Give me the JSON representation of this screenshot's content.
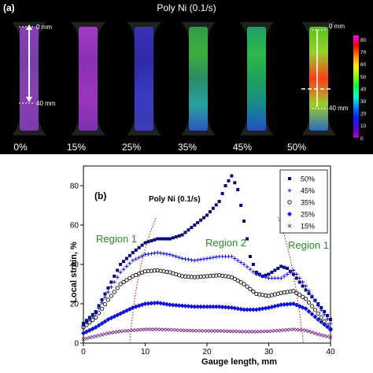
{
  "panel_a": {
    "label": "(a)",
    "title": "Poly Ni (0.1/s)",
    "specimens": [
      {
        "label": "0%",
        "colors": [
          "#8a3fb8",
          "#7a3ea8",
          "#8a40b0",
          "#7c3bad"
        ]
      },
      {
        "label": "15%",
        "colors": [
          "#a23bc4",
          "#8a2fb5",
          "#9a36c0",
          "#7f2fb0"
        ]
      },
      {
        "label": "25%",
        "colors": [
          "#3a32b8",
          "#2f2aa8",
          "#3a3ac0",
          "#3b3bb5"
        ]
      },
      {
        "label": "35%",
        "colors": [
          "#2f9a4a",
          "#3fae3f",
          "#2a8a66",
          "#2aa0a0",
          "#2a55c0"
        ]
      },
      {
        "label": "45%",
        "colors": [
          "#1aa06a",
          "#2fb84a",
          "#22a05a",
          "#1a8a8a",
          "#2050c8"
        ]
      },
      {
        "label": "50%",
        "colors": [
          "#5ac01a",
          "#98d02a",
          "#ff3a1a",
          "#9ad02a",
          "#2a6ac0"
        ]
      }
    ],
    "length_markers": {
      "top": "0 mm",
      "bottom": "40 mm"
    },
    "colorbar": {
      "ticks": [
        "80",
        "70",
        "60",
        "50",
        "40",
        "30",
        "20",
        "10",
        "0"
      ],
      "colors": [
        "#ff00ff",
        "#ff0000",
        "#ff8800",
        "#ffee00",
        "#88ff00",
        "#00ff44",
        "#00ffcc",
        "#0088ff",
        "#0022ff",
        "#5500cc",
        "#aa00cc"
      ]
    }
  },
  "panel_b": {
    "label": "(b)",
    "title": "Poly Ni (0.1/s)",
    "region_labels": [
      "Region 1",
      "Region 2",
      "Region 1"
    ],
    "colors": {
      "navy": "#0a0a78",
      "blue": "#1111dd",
      "purple": "#7a2a8a",
      "red_dotted": "#dd0000",
      "green_text": "#2a8a2a"
    }
  },
  "chart_data": {
    "type": "scatter",
    "xlabel": "Gauge length, mm",
    "ylabel": "Local strain, %",
    "xlim": [
      0,
      40
    ],
    "ylim": [
      0,
      90
    ],
    "xticks": [
      0,
      10,
      20,
      30,
      40
    ],
    "yticks": [
      0,
      20,
      40,
      60,
      80
    ],
    "legend_position": "top-right",
    "series": [
      {
        "name": "50%",
        "marker": "square",
        "color": "#0a0a78",
        "x": [
          0,
          2,
          4,
          6,
          8,
          10,
          12,
          14,
          16,
          18,
          20,
          22,
          23,
          24,
          25,
          26,
          27,
          28,
          29,
          30,
          31,
          32,
          33,
          34,
          36,
          38,
          40
        ],
        "y": [
          10,
          16,
          28,
          40,
          46,
          51,
          53,
          53,
          55,
          60,
          65,
          72,
          80,
          85,
          78,
          62,
          44,
          36,
          34,
          35,
          37,
          39,
          38,
          35,
          27,
          20,
          12
        ]
      },
      {
        "name": "45%",
        "marker": "plus",
        "color": "#1111dd",
        "x": [
          0,
          2,
          4,
          6,
          8,
          10,
          12,
          14,
          16,
          18,
          20,
          22,
          24,
          26,
          28,
          30,
          32,
          34,
          36,
          38,
          40
        ],
        "y": [
          9,
          15,
          26,
          36,
          42,
          45,
          46,
          45,
          43,
          42,
          43,
          44,
          44,
          40,
          35,
          33,
          33,
          37,
          29,
          19,
          10
        ]
      },
      {
        "name": "35%",
        "marker": "circle",
        "color": "#0a0a0a",
        "x": [
          0,
          2,
          4,
          6,
          8,
          10,
          12,
          14,
          16,
          18,
          20,
          22,
          24,
          26,
          28,
          30,
          32,
          34,
          36,
          38,
          40
        ],
        "y": [
          8,
          13,
          22,
          30,
          34,
          36.5,
          37,
          36,
          34,
          33.5,
          34,
          34.5,
          33.5,
          30,
          25,
          24,
          25.5,
          26.5,
          22.5,
          15,
          7
        ]
      },
      {
        "name": "25%",
        "marker": "diamond",
        "color": "#1111dd",
        "x": [
          0,
          2,
          4,
          6,
          8,
          10,
          12,
          14,
          16,
          18,
          20,
          22,
          24,
          26,
          28,
          30,
          32,
          34,
          36,
          38,
          40
        ],
        "y": [
          5,
          8,
          12,
          15,
          18,
          20,
          20.5,
          19.5,
          19,
          18.5,
          18.5,
          18.5,
          18,
          17,
          17,
          18,
          19.5,
          20,
          17.5,
          12,
          7
        ]
      },
      {
        "name": "15%",
        "marker": "x",
        "color": "#7a2a8a",
        "x": [
          0,
          2,
          4,
          6,
          8,
          10,
          12,
          14,
          16,
          18,
          20,
          22,
          24,
          26,
          28,
          30,
          32,
          34,
          36,
          38,
          40
        ],
        "y": [
          2,
          3.5,
          5,
          6,
          6.5,
          7,
          7,
          6.8,
          6.5,
          6.3,
          6.2,
          6.2,
          6,
          5.8,
          5.8,
          6,
          6.5,
          7,
          6.5,
          4.5,
          3
        ]
      }
    ]
  }
}
